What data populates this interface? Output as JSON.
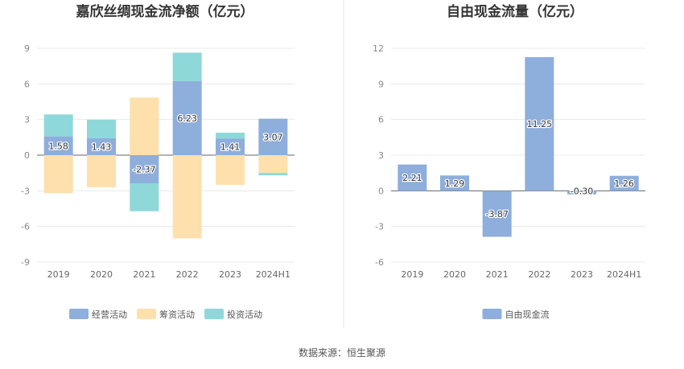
{
  "source_text": "数据来源：恒生聚源",
  "chart_data": [
    {
      "type": "bar",
      "stacked": true,
      "title": "嘉欣丝绸现金流净额（亿元）",
      "categories": [
        "2019",
        "2020",
        "2021",
        "2022",
        "2023",
        "2024H1"
      ],
      "ylim": [
        -9,
        9
      ],
      "yticks": [
        9,
        6,
        3,
        0,
        -3,
        -6,
        -9
      ],
      "grid": true,
      "legend_position": "bottom",
      "series": [
        {
          "name": "经营活动",
          "color": "#8eaedc",
          "values": [
            1.58,
            1.43,
            -2.37,
            6.23,
            1.41,
            3.07
          ],
          "labels": [
            "1.58",
            "1.43",
            "-2.37",
            "6.23",
            "1.41",
            "3.07"
          ]
        },
        {
          "name": "筹资活动",
          "color": "#fde0ac",
          "values": [
            -3.2,
            -2.7,
            4.85,
            -7.0,
            -2.5,
            -1.5
          ]
        },
        {
          "name": "投资活动",
          "color": "#8ed8da",
          "values": [
            1.85,
            1.55,
            -2.35,
            2.4,
            0.48,
            -0.2
          ]
        }
      ]
    },
    {
      "type": "bar",
      "title": "自由现金流量（亿元）",
      "categories": [
        "2019",
        "2020",
        "2021",
        "2022",
        "2023",
        "2024H1"
      ],
      "ylim": [
        -6,
        12
      ],
      "yticks": [
        12,
        9,
        6,
        3,
        0,
        -3,
        -6
      ],
      "grid": true,
      "legend_position": "bottom",
      "series": [
        {
          "name": "自由现金流",
          "color": "#8eaedc",
          "values": [
            2.21,
            1.29,
            -3.87,
            11.25,
            -0.3,
            1.26
          ],
          "labels": [
            "2.21",
            "1.29",
            "-3.87",
            "11.25",
            "-0.30",
            "1.26"
          ]
        }
      ]
    }
  ]
}
